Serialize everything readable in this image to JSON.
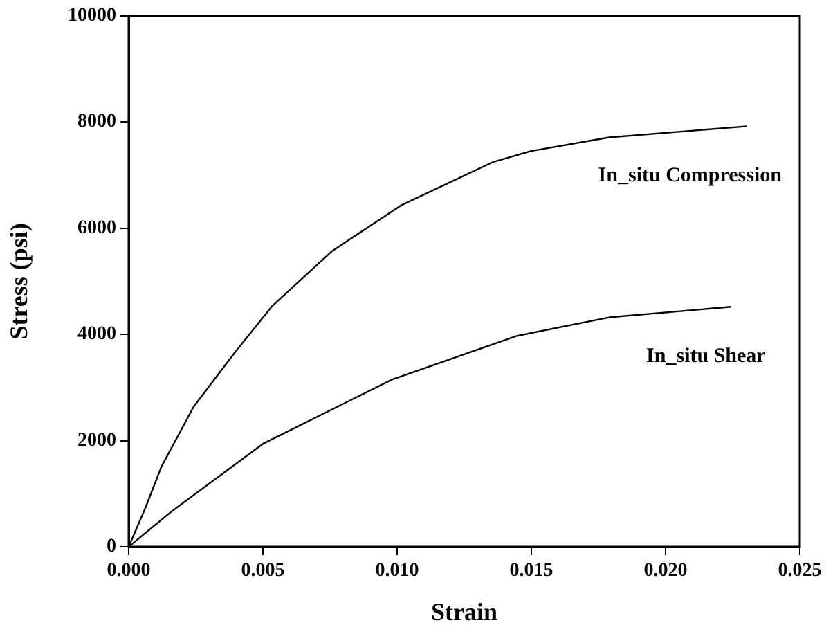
{
  "chart_data": {
    "type": "line",
    "xlabel": "Strain",
    "ylabel": "Stress (psi)",
    "xlim": [
      0,
      0.025
    ],
    "xticks": [
      {
        "value": 0,
        "label": "0.000"
      },
      {
        "value": 0.005,
        "label": "0.005"
      },
      {
        "value": 0.01,
        "label": "0.010"
      },
      {
        "value": 0.015,
        "label": "0.015"
      },
      {
        "value": 0.02,
        "label": "0.020"
      },
      {
        "value": 0.025,
        "label": "0.025"
      }
    ],
    "ylim": [
      0,
      10000
    ],
    "yticks": [
      0,
      2000,
      4000,
      6000,
      8000,
      10000
    ],
    "grid": false,
    "legend": false,
    "marker": "none",
    "line_style": "solid",
    "series": [
      {
        "name": "In_situ Compression",
        "color": "#000000",
        "x": [
          0,
          0.00062,
          0.00122,
          0.00242,
          0.00397,
          0.00534,
          0.00758,
          0.01015,
          0.01359,
          0.01497,
          0.01789,
          0.02304
        ],
        "values": [
          0,
          730,
          1510,
          2640,
          3670,
          4530,
          5570,
          6430,
          7250,
          7450,
          7710,
          7920
        ]
      },
      {
        "name": "In_situ Shear",
        "color": "#000000",
        "x": [
          0,
          0.00156,
          0.005,
          0.00981,
          0.01445,
          0.01789,
          0.02244
        ],
        "values": [
          0,
          650,
          1940,
          3150,
          3970,
          4320,
          4520
        ]
      }
    ]
  }
}
